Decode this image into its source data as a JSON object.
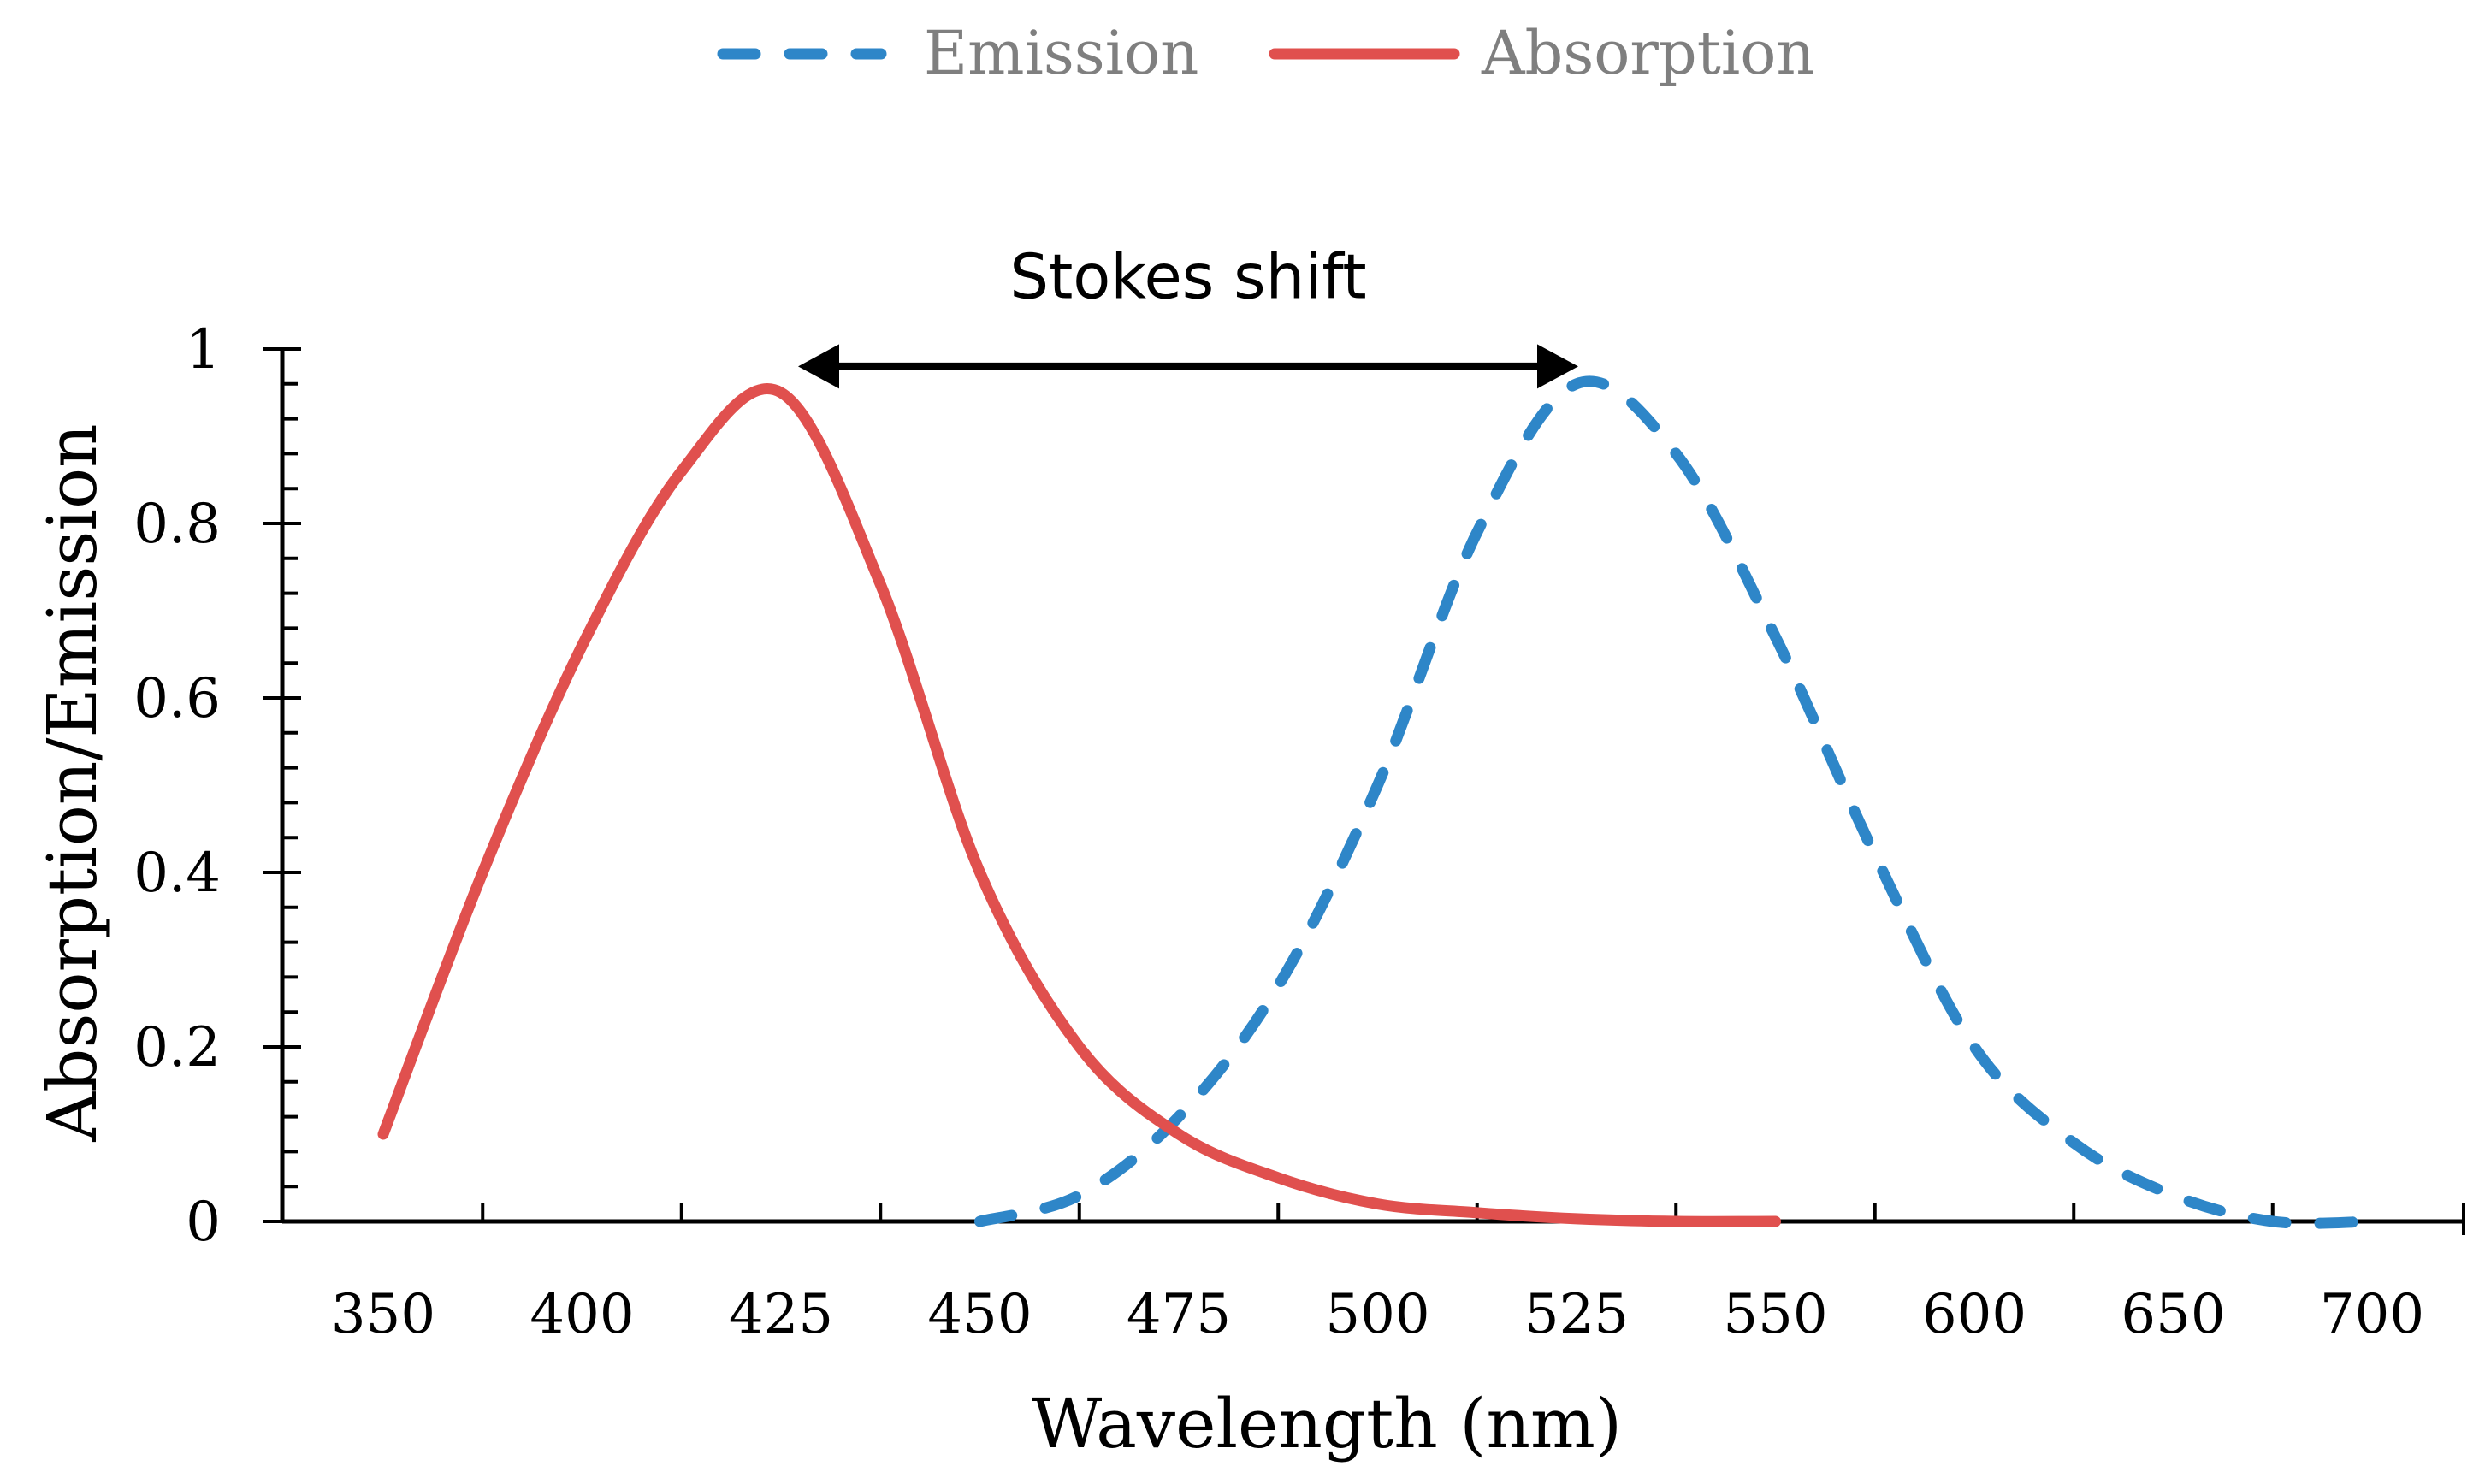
{
  "chart_data": {
    "type": "line",
    "title": "",
    "xlabel": "Wavelength (nm)",
    "ylabel": "Absorption/Emission",
    "x_tick_labels": [
      "350",
      "400",
      "425",
      "450",
      "475",
      "500",
      "525",
      "550",
      "600",
      "650",
      "700"
    ],
    "y_tick_labels": [
      "0",
      "0.2",
      "0.4",
      "0.6",
      "0.8",
      "1"
    ],
    "ylim": [
      0,
      1
    ],
    "legend": {
      "position": "top-center"
    },
    "annotation": {
      "label": "Stokes shift",
      "from_wavelength": 425,
      "to_wavelength": 525,
      "y": 0.98
    },
    "series": [
      {
        "name": "Emission",
        "style": "dashed",
        "color": "#2e86c8",
        "x": [
          450,
          462.5,
          475,
          487.5,
          500,
          512.5,
          525,
          537.5,
          550,
          575,
          600,
          625,
          650,
          675,
          700
        ],
        "y": [
          0,
          0.03,
          0.12,
          0.27,
          0.5,
          0.79,
          0.96,
          0.88,
          0.67,
          0.42,
          0.2,
          0.09,
          0.03,
          0,
          0
        ]
      },
      {
        "name": "Absorption",
        "style": "solid",
        "color": "#e0504e",
        "x": [
          350,
          375,
          400,
          412.5,
          425,
          437.5,
          450,
          462.5,
          475,
          487.5,
          500,
          512.5,
          525,
          537.5,
          550
        ],
        "y": [
          0.1,
          0.4,
          0.66,
          0.86,
          0.95,
          0.73,
          0.4,
          0.2,
          0.1,
          0.05,
          0.02,
          0.01,
          0.003,
          0,
          0
        ]
      }
    ]
  }
}
